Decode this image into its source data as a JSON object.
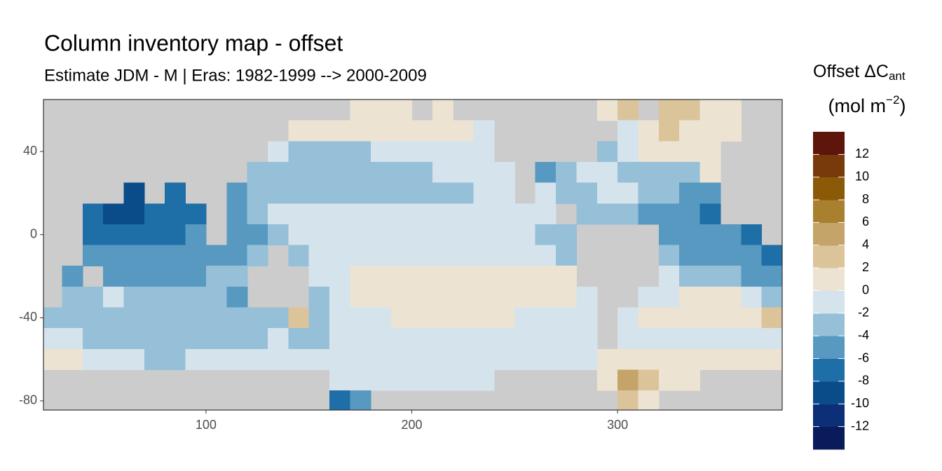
{
  "chart_data": {
    "type": "heatmap",
    "title": "Column inventory map - offset",
    "subtitle": "Estimate JDM - M | Eras: 1982-1999 --> 2000-2009",
    "legend_title": {
      "text": "Offset ΔC",
      "subscript": "ant"
    },
    "legend_unit": {
      "open": "(mol m",
      "superscript": "−2",
      "close": ")"
    },
    "xlim": [
      21,
      380
    ],
    "ylim": [
      -84.4,
      65
    ],
    "xticks": [
      100,
      200,
      300
    ],
    "yticks": [
      40,
      0,
      -40,
      -80
    ],
    "bins": [
      -14,
      -12,
      -10,
      -8,
      -6,
      -4,
      -2,
      0,
      2,
      4,
      6,
      8,
      10,
      12,
      14
    ],
    "colors": [
      "#0a1b5c",
      "#0d2f78",
      "#0a4c8a",
      "#1e6ea7",
      "#5799c0",
      "#96bfd8",
      "#d5e3ec",
      "#ece3d3",
      "#dcc49a",
      "#c4a468",
      "#a8802f",
      "#8a5a06",
      "#783a0b",
      "#5e150b"
    ],
    "legend_ticks": [
      12,
      10,
      8,
      6,
      4,
      2,
      0,
      -2,
      -4,
      -6,
      -8,
      -10,
      -12
    ],
    "missing_color": "#cccccc",
    "x": [
      25,
      35,
      45,
      55,
      65,
      75,
      85,
      95,
      105,
      115,
      125,
      135,
      145,
      155,
      165,
      175,
      185,
      195,
      205,
      215,
      225,
      235,
      245,
      255,
      265,
      275,
      285,
      295,
      305,
      315,
      325,
      335,
      345,
      355,
      365,
      375
    ],
    "y": [
      60,
      50,
      40,
      30,
      20,
      10,
      0,
      -10,
      -20,
      -30,
      -40,
      -50,
      -60,
      -70,
      -80
    ],
    "z": [
      [
        null,
        null,
        null,
        null,
        null,
        null,
        null,
        null,
        null,
        null,
        null,
        null,
        null,
        null,
        null,
        1,
        1,
        1,
        null,
        1,
        null,
        null,
        null,
        null,
        null,
        null,
        null,
        1,
        3,
        null,
        3,
        3,
        1,
        1,
        null,
        null
      ],
      [
        null,
        null,
        null,
        null,
        null,
        null,
        null,
        null,
        null,
        null,
        null,
        null,
        1,
        1,
        1,
        1,
        1,
        1,
        1,
        1,
        1,
        -1,
        null,
        null,
        null,
        null,
        null,
        null,
        -1,
        1,
        3,
        1,
        1,
        1,
        null,
        null
      ],
      [
        null,
        null,
        null,
        null,
        null,
        null,
        null,
        null,
        null,
        null,
        null,
        -1,
        -3,
        -3,
        -3,
        -3,
        -1,
        -1,
        -1,
        -1,
        -1,
        -1,
        null,
        null,
        null,
        null,
        null,
        -3,
        -1,
        1,
        1,
        1,
        1,
        null,
        null,
        null
      ],
      [
        null,
        null,
        null,
        null,
        null,
        null,
        null,
        null,
        null,
        null,
        -3,
        -3,
        -3,
        -3,
        -3,
        -3,
        -3,
        -3,
        -3,
        -1,
        -1,
        -1,
        -1,
        null,
        -5,
        -3,
        -1,
        -1,
        -3,
        -3,
        -3,
        -3,
        1,
        null,
        null,
        null
      ],
      [
        null,
        null,
        null,
        null,
        -9,
        null,
        -7,
        null,
        null,
        -5,
        -3,
        -3,
        -3,
        -3,
        -3,
        -3,
        -3,
        -3,
        -3,
        -3,
        -3,
        -1,
        -1,
        null,
        -1,
        -3,
        -3,
        -1,
        -1,
        -3,
        -3,
        -5,
        -5,
        null,
        null,
        null
      ],
      [
        null,
        null,
        -7,
        -9,
        -9,
        -7,
        -7,
        -7,
        null,
        -5,
        -3,
        -1,
        -1,
        -1,
        -1,
        -1,
        -1,
        -1,
        -1,
        -1,
        -1,
        -1,
        -1,
        -1,
        -1,
        null,
        -3,
        -3,
        -3,
        -5,
        -5,
        -5,
        -7,
        null,
        null,
        null
      ],
      [
        null,
        null,
        -7,
        -7,
        -7,
        -7,
        -7,
        -5,
        null,
        -5,
        -5,
        -3,
        -1,
        -1,
        -1,
        -1,
        -1,
        -1,
        -1,
        -1,
        -1,
        -1,
        -1,
        -1,
        -3,
        -3,
        null,
        null,
        null,
        null,
        -5,
        -5,
        -5,
        -5,
        -7,
        null
      ],
      [
        null,
        null,
        -5,
        -5,
        -5,
        -5,
        -5,
        -5,
        -5,
        -5,
        -3,
        null,
        -3,
        -1,
        -1,
        -1,
        -1,
        -1,
        -1,
        -1,
        -1,
        -1,
        -1,
        -1,
        -1,
        -3,
        null,
        null,
        null,
        null,
        -3,
        -5,
        -5,
        -5,
        -5,
        -7
      ],
      [
        null,
        -5,
        null,
        -5,
        -5,
        -5,
        -5,
        -5,
        -3,
        -3,
        null,
        null,
        null,
        -1,
        -1,
        1,
        1,
        1,
        1,
        1,
        1,
        1,
        1,
        1,
        1,
        1,
        null,
        null,
        null,
        null,
        -1,
        -3,
        -3,
        -3,
        -5,
        -5
      ],
      [
        null,
        -3,
        -3,
        -1,
        -3,
        -3,
        -3,
        -3,
        -3,
        -5,
        null,
        null,
        null,
        -3,
        -1,
        1,
        1,
        1,
        1,
        1,
        1,
        1,
        1,
        1,
        1,
        1,
        -1,
        null,
        null,
        -1,
        -1,
        1,
        1,
        1,
        -1,
        -3
      ],
      [
        -3,
        -3,
        -3,
        -3,
        -3,
        -3,
        -3,
        -3,
        -3,
        -3,
        -3,
        -3,
        3,
        -3,
        -1,
        -1,
        -1,
        1,
        1,
        1,
        1,
        1,
        1,
        -1,
        -1,
        -1,
        -1,
        null,
        -1,
        1,
        1,
        1,
        1,
        1,
        1,
        3
      ],
      [
        -1,
        -1,
        -3,
        -3,
        -3,
        -3,
        -3,
        -3,
        -3,
        -3,
        -3,
        -1,
        -3,
        -3,
        -1,
        -1,
        -1,
        -1,
        -1,
        -1,
        -1,
        -1,
        -1,
        -1,
        -1,
        -1,
        -1,
        null,
        -1,
        -1,
        -1,
        -1,
        -1,
        -1,
        -1,
        -1
      ],
      [
        1,
        1,
        -1,
        -1,
        -1,
        -3,
        -3,
        -1,
        -1,
        -1,
        -1,
        -1,
        -1,
        -1,
        -1,
        -1,
        -1,
        -1,
        -1,
        -1,
        -1,
        -1,
        -1,
        -1,
        -1,
        -1,
        -1,
        1,
        1,
        1,
        1,
        1,
        1,
        1,
        1,
        1
      ],
      [
        null,
        null,
        null,
        null,
        null,
        null,
        null,
        null,
        null,
        null,
        null,
        null,
        null,
        null,
        -1,
        -1,
        -1,
        -1,
        -1,
        -1,
        -1,
        -1,
        null,
        null,
        null,
        null,
        null,
        1,
        5,
        3,
        1,
        1,
        null,
        null,
        null,
        null
      ],
      [
        null,
        null,
        null,
        null,
        null,
        null,
        null,
        null,
        null,
        null,
        null,
        null,
        null,
        null,
        -7,
        -5,
        null,
        null,
        null,
        null,
        null,
        null,
        null,
        null,
        null,
        null,
        null,
        null,
        3,
        1,
        null,
        null,
        null,
        null,
        null,
        null
      ]
    ]
  }
}
